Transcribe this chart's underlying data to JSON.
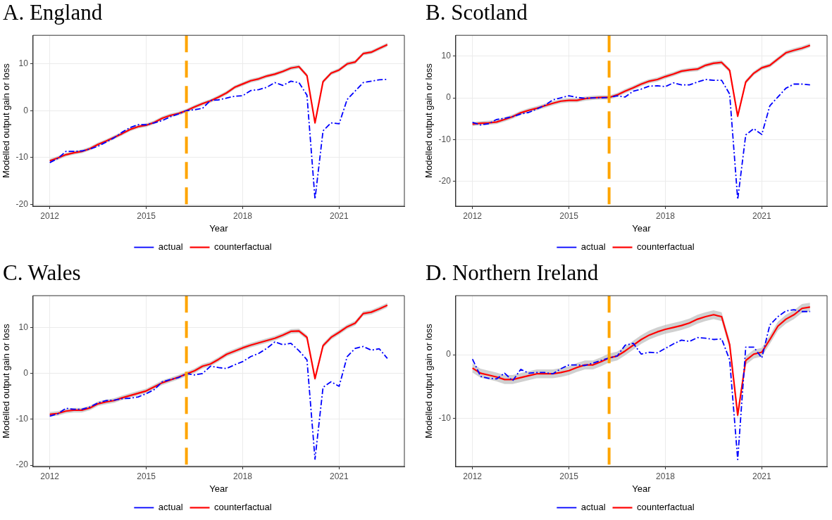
{
  "chart_data": [
    {
      "type": "line",
      "title": "A. England",
      "xlabel": "Year",
      "ylabel": "Modelled output gain or loss",
      "x": [
        2012,
        2012.25,
        2012.5,
        2012.75,
        2013,
        2013.25,
        2013.5,
        2013.75,
        2014,
        2014.25,
        2014.5,
        2014.75,
        2015,
        2015.25,
        2015.5,
        2015.75,
        2016,
        2016.25,
        2016.5,
        2016.75,
        2017,
        2017.25,
        2017.5,
        2017.75,
        2018,
        2018.25,
        2018.5,
        2018.75,
        2019,
        2019.25,
        2019.5,
        2019.75,
        2020,
        2020.25,
        2020.5,
        2020.75,
        2021,
        2021.25,
        2021.5,
        2021.75,
        2022,
        2022.25,
        2022.5
      ],
      "series": [
        {
          "name": "actual",
          "color": "#0000ff",
          "line_style": "dashed",
          "values": [
            -11.1,
            -10.2,
            -8.7,
            -8.7,
            -8.6,
            -8.2,
            -7.6,
            -6.7,
            -5.8,
            -4.6,
            -3.6,
            -3.0,
            -3.0,
            -2.6,
            -2.1,
            -1.3,
            -0.7,
            0.0,
            0.2,
            0.5,
            2.2,
            2.3,
            2.7,
            3.1,
            3.2,
            4.3,
            4.5,
            5.0,
            6.0,
            5.4,
            6.3,
            6.0,
            3.3,
            -18.9,
            -4.3,
            -2.6,
            -2.8,
            2.4,
            4.2,
            6.0,
            6.3,
            6.6,
            6.7
          ]
        },
        {
          "name": "counterfactual",
          "color": "#ff0000",
          "line_style": "solid",
          "values": [
            -10.7,
            -10.1,
            -9.4,
            -9.0,
            -8.7,
            -8.1,
            -7.2,
            -6.5,
            -5.7,
            -4.9,
            -4.0,
            -3.4,
            -3.1,
            -2.5,
            -1.6,
            -1.0,
            -0.6,
            0.0,
            0.8,
            1.5,
            2.1,
            2.9,
            3.8,
            5.0,
            5.7,
            6.4,
            6.8,
            7.4,
            7.8,
            8.4,
            9.1,
            9.4,
            7.5,
            -2.6,
            6.2,
            8.0,
            8.7,
            10.0,
            10.4,
            12.2,
            12.5,
            13.3,
            14.1
          ],
          "lower": [
            -11.1,
            -10.5,
            -9.8,
            -9.4,
            -9.1,
            -8.5,
            -7.6,
            -6.9,
            -6.1,
            -5.3,
            -4.4,
            -3.8,
            -3.5,
            -2.9,
            -2.0,
            -1.4,
            -1.0,
            -0.4,
            0.4,
            1.1,
            1.7,
            2.5,
            3.4,
            4.6,
            5.3,
            6.0,
            6.4,
            7.0,
            7.4,
            8.0,
            8.7,
            9.0,
            7.1,
            -3.0,
            5.8,
            7.6,
            8.3,
            9.6,
            10.0,
            11.8,
            12.1,
            12.9,
            13.7
          ],
          "upper": [
            -10.3,
            -9.7,
            -9.0,
            -8.6,
            -8.3,
            -7.7,
            -6.8,
            -6.1,
            -5.3,
            -4.5,
            -3.6,
            -3.0,
            -2.7,
            -2.1,
            -1.2,
            -0.6,
            -0.2,
            0.4,
            1.2,
            1.9,
            2.5,
            3.3,
            4.2,
            5.4,
            6.1,
            6.8,
            7.2,
            7.8,
            8.2,
            8.8,
            9.5,
            9.8,
            7.9,
            -2.2,
            6.6,
            8.4,
            9.1,
            10.4,
            10.8,
            12.6,
            12.9,
            13.7,
            14.5
          ]
        }
      ],
      "xlim": [
        2011.48,
        2023.03
      ],
      "xticks": [
        2012,
        2015,
        2018,
        2021
      ],
      "ylim": [
        -20.4,
        16.1
      ],
      "yticks": [
        -20,
        -10,
        0,
        10
      ],
      "ref_lines": [
        {
          "axis": "x",
          "value": 2016.25,
          "color": "#ffa500",
          "line_style": "dashed"
        }
      ],
      "grid": true,
      "legend": "bottom"
    },
    {
      "type": "line",
      "title": "B. Scotland",
      "xlabel": "Year",
      "ylabel": "Modelled output gain or loss",
      "x": [
        2012,
        2012.25,
        2012.5,
        2012.75,
        2013,
        2013.25,
        2013.5,
        2013.75,
        2014,
        2014.25,
        2014.5,
        2014.75,
        2015,
        2015.25,
        2015.5,
        2015.75,
        2016,
        2016.25,
        2016.5,
        2016.75,
        2017,
        2017.25,
        2017.5,
        2017.75,
        2018,
        2018.25,
        2018.5,
        2018.75,
        2019,
        2019.25,
        2019.5,
        2019.75,
        2020,
        2020.25,
        2020.5,
        2020.75,
        2021,
        2021.25,
        2021.5,
        2021.75,
        2022,
        2022.25,
        2022.5
      ],
      "series": [
        {
          "name": "actual",
          "color": "#0000ff",
          "line_style": "dashed",
          "values": [
            -5.9,
            -6.5,
            -6.2,
            -5.2,
            -4.9,
            -4.5,
            -3.9,
            -3.5,
            -2.7,
            -1.8,
            -0.5,
            0.0,
            0.5,
            0.1,
            -0.1,
            0.0,
            0.0,
            0.1,
            0.5,
            0.2,
            1.6,
            2.1,
            2.8,
            2.9,
            2.7,
            3.6,
            3.1,
            3.1,
            3.8,
            4.4,
            4.2,
            4.2,
            0.9,
            -24.4,
            -8.9,
            -7.4,
            -8.8,
            -1.9,
            0.2,
            2.3,
            3.3,
            3.3,
            3.1
          ]
        },
        {
          "name": "counterfactual",
          "color": "#ff0000",
          "line_style": "solid",
          "values": [
            -6.3,
            -6.1,
            -6.0,
            -5.8,
            -5.2,
            -4.5,
            -3.6,
            -3.0,
            -2.5,
            -1.9,
            -1.3,
            -0.8,
            -0.6,
            -0.6,
            -0.2,
            0.0,
            0.1,
            0.1,
            0.7,
            1.6,
            2.4,
            3.3,
            4.0,
            4.4,
            5.1,
            5.7,
            6.4,
            6.7,
            6.9,
            7.8,
            8.3,
            8.5,
            6.6,
            -4.4,
            3.8,
            5.9,
            7.2,
            7.8,
            9.3,
            10.8,
            11.4,
            11.9,
            12.6
          ],
          "lower": [
            -6.8,
            -6.6,
            -6.5,
            -6.3,
            -5.7,
            -5.0,
            -4.1,
            -3.5,
            -3.0,
            -2.4,
            -1.8,
            -1.3,
            -1.1,
            -1.1,
            -0.7,
            -0.5,
            -0.4,
            -0.4,
            0.2,
            1.1,
            1.9,
            2.8,
            3.5,
            3.9,
            4.6,
            5.2,
            5.9,
            6.2,
            6.4,
            7.3,
            7.8,
            8.0,
            6.1,
            -4.9,
            3.3,
            5.4,
            6.7,
            7.3,
            8.8,
            10.3,
            10.9,
            11.4,
            12.1
          ],
          "upper": [
            -5.8,
            -5.6,
            -5.5,
            -5.3,
            -4.7,
            -4.0,
            -3.1,
            -2.5,
            -2.0,
            -1.4,
            -0.8,
            -0.3,
            -0.1,
            -0.1,
            0.3,
            0.5,
            0.6,
            0.6,
            1.2,
            2.1,
            2.9,
            3.8,
            4.5,
            4.9,
            5.6,
            6.2,
            6.9,
            7.2,
            7.4,
            8.3,
            8.8,
            9.0,
            7.1,
            -3.9,
            4.3,
            6.4,
            7.7,
            8.3,
            9.8,
            11.3,
            11.9,
            12.4,
            13.1
          ]
        }
      ],
      "xlim": [
        2011.48,
        2023.03
      ],
      "xticks": [
        2012,
        2015,
        2018,
        2021
      ],
      "ylim": [
        -26.0,
        15.0
      ],
      "yticks": [
        -20,
        -10,
        0,
        10
      ],
      "ref_lines": [
        {
          "axis": "x",
          "value": 2016.25,
          "color": "#ffa500",
          "line_style": "dashed"
        }
      ],
      "grid": true,
      "legend": "bottom"
    },
    {
      "type": "line",
      "title": "C. Wales",
      "xlabel": "Year",
      "ylabel": "Modelled output gain or loss",
      "x": [
        2012,
        2012.25,
        2012.5,
        2012.75,
        2013,
        2013.25,
        2013.5,
        2013.75,
        2014,
        2014.25,
        2014.5,
        2014.75,
        2015,
        2015.25,
        2015.5,
        2015.75,
        2016,
        2016.25,
        2016.5,
        2016.75,
        2017,
        2017.25,
        2017.5,
        2017.75,
        2018,
        2018.25,
        2018.5,
        2018.75,
        2019,
        2019.25,
        2019.5,
        2019.75,
        2020,
        2020.25,
        2020.5,
        2020.75,
        2021,
        2021.25,
        2021.5,
        2021.75,
        2022,
        2022.25,
        2022.5
      ],
      "series": [
        {
          "name": "actual",
          "color": "#0000ff",
          "line_style": "dashed",
          "values": [
            -9.3,
            -8.8,
            -7.6,
            -7.8,
            -7.8,
            -7.3,
            -6.4,
            -5.9,
            -5.8,
            -5.5,
            -5.4,
            -5.1,
            -4.4,
            -3.5,
            -1.8,
            -1.3,
            -0.9,
            0.0,
            -0.3,
            0.0,
            1.6,
            1.3,
            1.1,
            1.9,
            2.6,
            3.7,
            4.4,
            5.5,
            6.9,
            6.3,
            6.6,
            5.0,
            3.0,
            -18.7,
            -3.0,
            -1.8,
            -2.8,
            3.7,
            5.5,
            5.9,
            5.1,
            5.4,
            3.3
          ]
        },
        {
          "name": "counterfactual",
          "color": "#ff0000",
          "line_style": "solid",
          "values": [
            -8.9,
            -8.7,
            -8.2,
            -8.0,
            -8.0,
            -7.5,
            -6.6,
            -6.2,
            -5.9,
            -5.3,
            -4.8,
            -4.3,
            -3.8,
            -2.9,
            -2.0,
            -1.4,
            -0.8,
            -0.1,
            0.6,
            1.6,
            2.1,
            3.1,
            4.2,
            4.9,
            5.6,
            6.2,
            6.7,
            7.2,
            7.7,
            8.4,
            9.2,
            9.3,
            7.9,
            -1.1,
            6.1,
            7.9,
            9.0,
            10.2,
            11.0,
            13.1,
            13.4,
            14.1,
            14.9
          ],
          "lower": [
            -9.4,
            -9.2,
            -8.7,
            -8.5,
            -8.5,
            -8.0,
            -7.1,
            -6.7,
            -6.4,
            -5.8,
            -5.3,
            -4.8,
            -4.3,
            -3.4,
            -2.5,
            -1.9,
            -1.3,
            -0.6,
            0.1,
            1.1,
            1.6,
            2.6,
            3.7,
            4.4,
            5.1,
            5.7,
            6.2,
            6.7,
            7.2,
            7.9,
            8.7,
            8.8,
            7.4,
            -1.6,
            5.6,
            7.4,
            8.5,
            9.7,
            10.5,
            12.6,
            12.9,
            13.6,
            14.4
          ],
          "upper": [
            -8.4,
            -8.2,
            -7.7,
            -7.5,
            -7.5,
            -7.0,
            -6.1,
            -5.7,
            -5.4,
            -4.8,
            -4.3,
            -3.8,
            -3.3,
            -2.4,
            -1.5,
            -0.9,
            -0.3,
            0.4,
            1.1,
            2.1,
            2.6,
            3.6,
            4.7,
            5.4,
            6.1,
            6.7,
            7.2,
            7.7,
            8.2,
            8.9,
            9.7,
            9.8,
            8.4,
            -0.6,
            6.6,
            8.4,
            9.5,
            10.7,
            11.5,
            13.6,
            13.9,
            14.6,
            15.4
          ]
        }
      ],
      "xlim": [
        2011.48,
        2023.03
      ],
      "xticks": [
        2012,
        2015,
        2018,
        2021
      ],
      "ylim": [
        -20.3,
        17.0
      ],
      "yticks": [
        -20,
        -10,
        0,
        10
      ],
      "ref_lines": [
        {
          "axis": "x",
          "value": 2016.25,
          "color": "#ffa500",
          "line_style": "dashed"
        }
      ],
      "grid": true,
      "legend": "bottom"
    },
    {
      "type": "line",
      "title": "D. Northern Ireland",
      "xlabel": "Year",
      "ylabel": "Modelled output gain or loss",
      "x": [
        2012,
        2012.25,
        2012.5,
        2012.75,
        2013,
        2013.25,
        2013.5,
        2013.75,
        2014,
        2014.25,
        2014.5,
        2014.75,
        2015,
        2015.25,
        2015.5,
        2015.75,
        2016,
        2016.25,
        2016.5,
        2016.75,
        2017,
        2017.25,
        2017.5,
        2017.75,
        2018,
        2018.25,
        2018.5,
        2018.75,
        2019,
        2019.25,
        2019.5,
        2019.75,
        2020,
        2020.25,
        2020.5,
        2020.75,
        2021,
        2021.25,
        2021.5,
        2021.75,
        2022,
        2022.25,
        2022.5
      ],
      "series": [
        {
          "name": "actual",
          "color": "#0000ff",
          "line_style": "dashed",
          "values": [
            -0.7,
            -3.4,
            -3.7,
            -3.8,
            -2.9,
            -4.1,
            -2.3,
            -2.9,
            -2.8,
            -2.8,
            -3.0,
            -2.2,
            -1.6,
            -1.6,
            -1.7,
            -1.3,
            -0.9,
            -0.5,
            -0.2,
            1.5,
            1.8,
            0.1,
            0.4,
            0.3,
            1.0,
            1.7,
            2.3,
            2.1,
            2.7,
            2.6,
            2.4,
            2.5,
            -0.8,
            -16.5,
            1.2,
            1.2,
            -0.5,
            4.7,
            6.0,
            6.9,
            7.1,
            6.8,
            6.8
          ]
        },
        {
          "name": "counterfactual",
          "color": "#ff0000",
          "line_style": "solid",
          "values": [
            -2.1,
            -2.9,
            -3.2,
            -3.5,
            -3.9,
            -3.9,
            -3.6,
            -3.3,
            -3.0,
            -3.0,
            -3.0,
            -2.8,
            -2.5,
            -2.0,
            -1.6,
            -1.6,
            -1.1,
            -0.5,
            -0.2,
            0.6,
            1.5,
            2.4,
            3.1,
            3.6,
            4.0,
            4.3,
            4.6,
            5.0,
            5.6,
            6.0,
            6.3,
            6.0,
            1.6,
            -9.5,
            -0.9,
            0.1,
            0.4,
            2.4,
            4.5,
            5.6,
            6.3,
            7.3,
            7.5
          ],
          "lower": [
            -2.8,
            -3.6,
            -3.9,
            -4.2,
            -4.6,
            -4.6,
            -4.3,
            -4.0,
            -3.7,
            -3.7,
            -3.7,
            -3.5,
            -3.2,
            -2.7,
            -2.3,
            -2.3,
            -1.8,
            -1.2,
            -0.9,
            -0.1,
            0.8,
            1.7,
            2.4,
            2.9,
            3.3,
            3.6,
            3.9,
            4.3,
            4.9,
            5.3,
            5.6,
            5.3,
            0.9,
            -10.2,
            -1.6,
            -0.6,
            -0.3,
            1.7,
            3.8,
            4.9,
            5.6,
            6.6,
            6.8
          ],
          "upper": [
            -1.4,
            -2.2,
            -2.5,
            -2.8,
            -3.2,
            -3.2,
            -2.9,
            -2.6,
            -2.3,
            -2.3,
            -2.3,
            -2.1,
            -1.8,
            -1.3,
            -0.9,
            -0.9,
            -0.4,
            0.2,
            0.5,
            1.3,
            2.2,
            3.1,
            3.8,
            4.3,
            4.7,
            5.0,
            5.3,
            5.7,
            6.3,
            6.7,
            7.0,
            6.7,
            2.3,
            -8.8,
            -0.2,
            0.8,
            1.1,
            3.1,
            5.2,
            6.3,
            7.0,
            8.0,
            8.2
          ]
        }
      ],
      "xlim": [
        2011.48,
        2023.03
      ],
      "xticks": [
        2012,
        2015,
        2018,
        2021
      ],
      "ylim": [
        -17.6,
        9.3
      ],
      "yticks": [
        -10,
        0
      ],
      "ref_lines": [
        {
          "axis": "x",
          "value": 2016.25,
          "color": "#ffa500",
          "line_style": "dashed"
        }
      ],
      "grid": true,
      "legend": "bottom"
    }
  ]
}
